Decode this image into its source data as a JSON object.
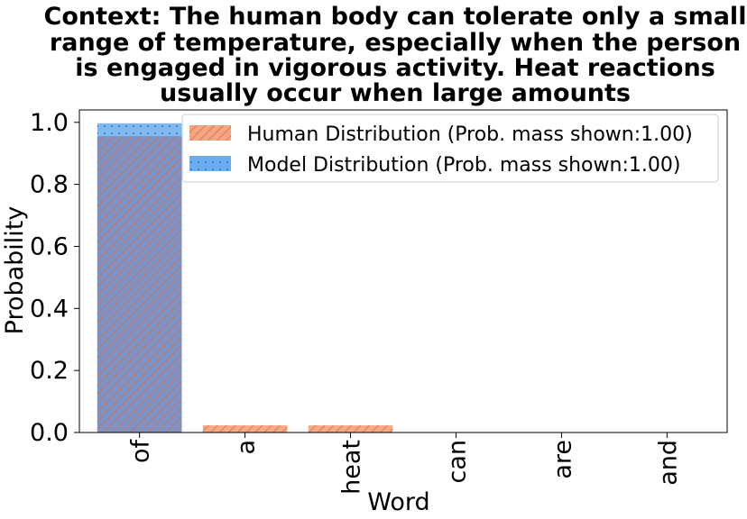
{
  "chart_data": {
    "type": "bar",
    "title_lines": [
      "Context: The human body can tolerate only a small",
      "range of temperature, especially when the person",
      "is engaged in vigorous activity. Heat reactions",
      "usually occur when large amounts"
    ],
    "xlabel": "Word",
    "ylabel": "Probability",
    "categories": [
      "of",
      "a",
      "heat",
      "can",
      "are",
      "and"
    ],
    "series": [
      {
        "name": "Human Distribution (Prob. mass shown:1.00)",
        "values": [
          0.955,
          0.023,
          0.023,
          0.0,
          0.0,
          0.0
        ],
        "color": "#f4a582",
        "hatch_color": "#e06a3c"
      },
      {
        "name": "Model Distribution (Prob. mass shown:1.00)",
        "values": [
          0.997,
          0.0008,
          0.0008,
          0.0008,
          0.0008,
          0.0008
        ],
        "color": "#6aaeef",
        "dot_color": "#3a7ed0"
      }
    ],
    "overlap_color": "#7b90c4",
    "ylim": [
      0,
      1.04
    ],
    "yticks": [
      "0.0",
      "0.2",
      "0.4",
      "0.6",
      "0.8",
      "1.0"
    ],
    "legend_position": "upper right",
    "grid": false
  }
}
